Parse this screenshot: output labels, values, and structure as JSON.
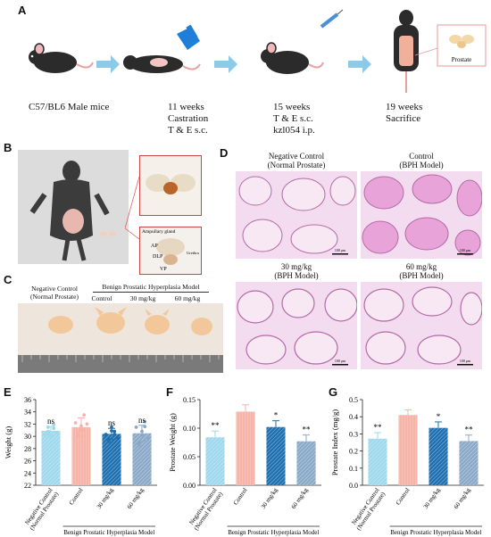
{
  "panel_a": {
    "label": "A",
    "steps": [
      {
        "lines": [
          "C57/BL6 Male mice"
        ]
      },
      {
        "lines": [
          "11 weeks",
          "Castration",
          "T & E  s.c."
        ]
      },
      {
        "lines": [
          "15 weeks",
          "T & E  s.c.",
          "kzl054 i.p."
        ]
      },
      {
        "lines": [
          "19 weeks",
          "Sacrifice"
        ]
      }
    ],
    "inset_label": "Prostate"
  },
  "panel_b": {
    "label": "B",
    "anatomy_labels": [
      "Ampullary gland",
      "AP",
      "DLP",
      "VP",
      "Urethra"
    ]
  },
  "panel_c": {
    "label": "C",
    "group_neg_line1": "Negative Control",
    "group_neg_line2": "(Normal Prostate)",
    "group_bph": "Benign Prostatic Hyperplasia Model",
    "sub_labels": [
      "Control",
      "30 mg/kg",
      "60 mg/kg"
    ]
  },
  "panel_d": {
    "label": "D",
    "titles": [
      [
        "Negative Control",
        "(Normal Prostate)"
      ],
      [
        "Control",
        "(BPH Model)"
      ],
      [
        "30 mg/kg",
        "(BPH Model)"
      ],
      [
        "60 mg/kg",
        "(BPH Model)"
      ]
    ],
    "scale_bar": "100 μm"
  },
  "colors": {
    "negative": "#9ed8ec",
    "control": "#f6b3a8",
    "dose30": "#1d6fb0",
    "dose60": "#8aa9c8"
  },
  "chart_data": [
    {
      "panel": "E",
      "type": "bar",
      "ylabel": "Weight (g)",
      "ylim": [
        22,
        36
      ],
      "yticks": [
        22,
        24,
        26,
        28,
        30,
        32,
        34,
        36
      ],
      "categories": [
        "Negative Control (Normal Prostate)",
        "Control",
        "30 mg/kg",
        "60 mg/kg"
      ],
      "values": [
        30.9,
        31.5,
        30.4,
        30.5
      ],
      "errors": [
        0.7,
        1.5,
        0.9,
        1.3
      ],
      "significance": [
        "ns",
        "",
        "ns",
        "ns"
      ],
      "points": [
        [
          30.3,
          31.5,
          30.0,
          31.9,
          30.8,
          30.2,
          31.3,
          30.6
        ],
        [
          32.2,
          30.5,
          31.0,
          33.5,
          30.3,
          31.7,
          31.0,
          32.0
        ],
        [
          30.3,
          29.5,
          31.5,
          30.8,
          29.2,
          30.9,
          30.3,
          29.8
        ],
        [
          31.5,
          29.0,
          30.8,
          32.4,
          28.6,
          30.2,
          31.6,
          29.8
        ]
      ],
      "group_label": "Benign Prostatic Hyperplasia Model"
    },
    {
      "panel": "F",
      "type": "bar",
      "ylabel": "Prostate Weight (g)",
      "ylim": [
        0,
        0.15
      ],
      "yticks": [
        0.0,
        0.05,
        0.1,
        0.15
      ],
      "ytick_labels": [
        "0.00",
        "0.05",
        "0.10",
        "0.15"
      ],
      "categories": [
        "Negative Control (Normal Prostate)",
        "Control",
        "30 mg/kg",
        "60 mg/kg"
      ],
      "values": [
        0.084,
        0.129,
        0.102,
        0.077
      ],
      "errors": [
        0.011,
        0.012,
        0.011,
        0.011
      ],
      "significance": [
        "**",
        "",
        "*",
        "**"
      ],
      "group_label": "Benign Prostatic Hyperplasia Model"
    },
    {
      "panel": "G",
      "type": "bar",
      "ylabel": "Prostate Index (mg/g)",
      "ylim": [
        0,
        0.5
      ],
      "yticks": [
        0.0,
        0.1,
        0.2,
        0.3,
        0.4,
        0.5
      ],
      "ytick_labels": [
        "0.0",
        "0.1",
        "0.2",
        "0.3",
        "0.4",
        "0.5"
      ],
      "categories": [
        "Negative Control (Normal Prostate)",
        "Control",
        "30 mg/kg",
        "60 mg/kg"
      ],
      "values": [
        0.272,
        0.41,
        0.335,
        0.258
      ],
      "errors": [
        0.035,
        0.03,
        0.035,
        0.035
      ],
      "significance": [
        "**",
        "",
        "*",
        "**"
      ],
      "group_label": "Benign Prostatic Hyperplasia Model"
    }
  ]
}
